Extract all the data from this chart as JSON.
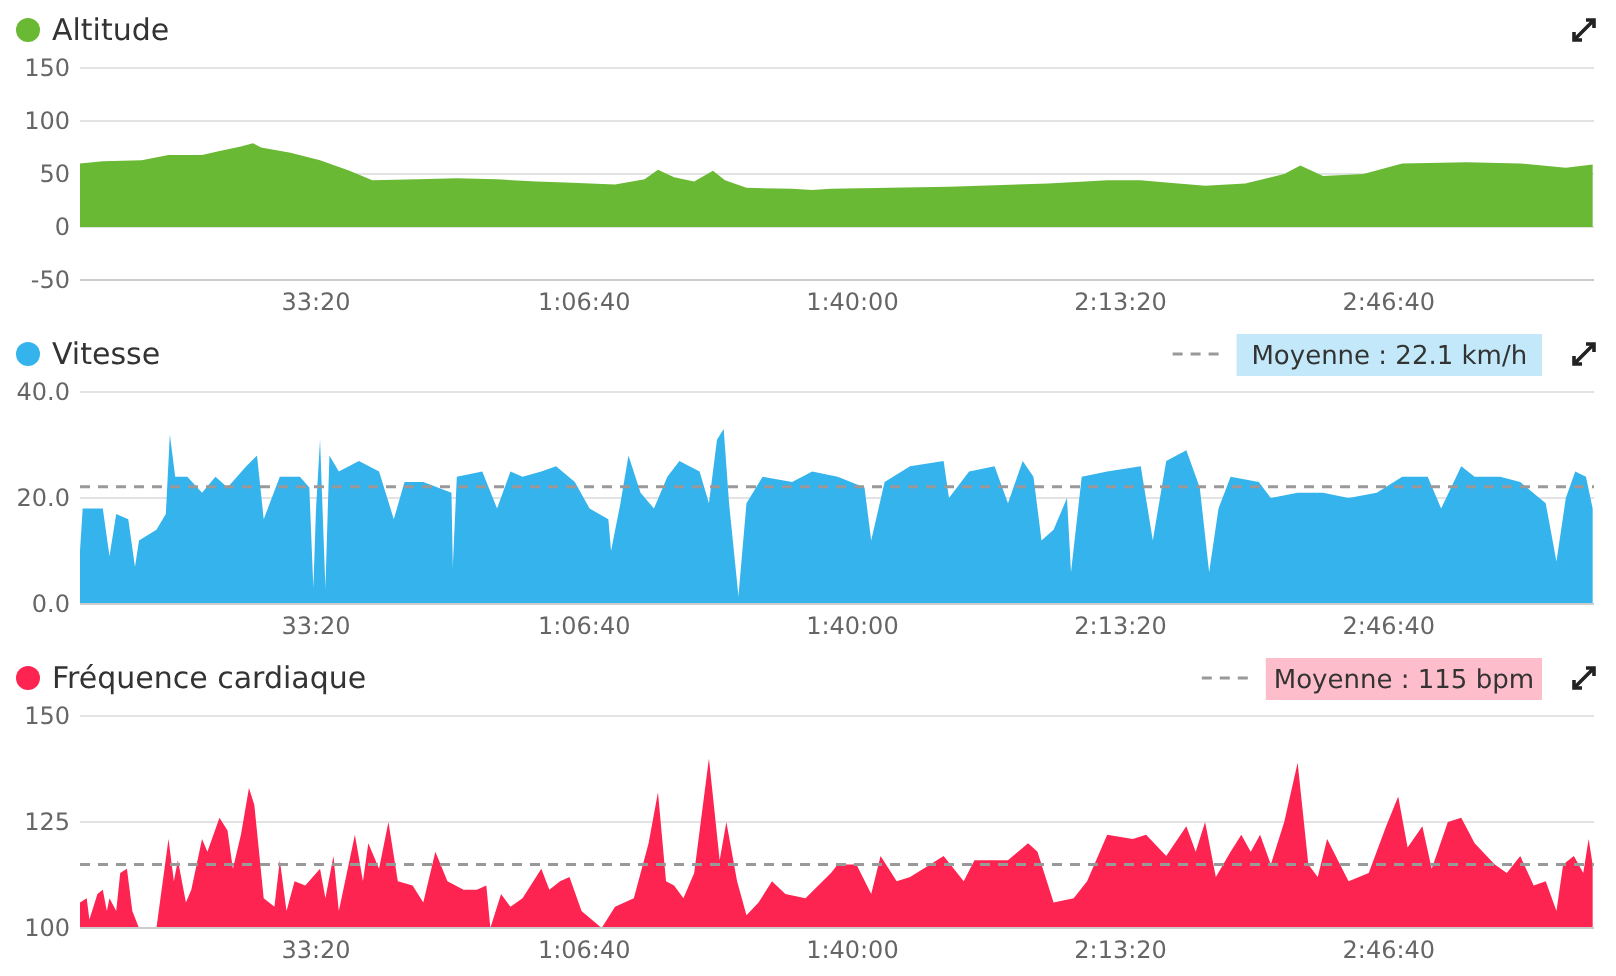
{
  "chart_data": [
    {
      "type": "area",
      "title": "Altitude",
      "xlim": [
        240,
        11530
      ],
      "xticks": [
        {
          "value": 2000,
          "label": "33:20"
        },
        {
          "value": 4000,
          "label": "1:06:40"
        },
        {
          "value": 6000,
          "label": "1:40:00"
        },
        {
          "value": 8000,
          "label": "2:13:20"
        },
        {
          "value": 10000,
          "label": "2:46:40"
        }
      ],
      "ylim": [
        -50,
        150
      ],
      "yticks": [
        -50,
        0,
        50,
        100,
        150
      ],
      "grid": "y",
      "series": [
        {
          "color": "#6ab935",
          "x": [
            240,
            410,
            700,
            900,
            1150,
            1290,
            1440,
            1530,
            1590,
            1810,
            2030,
            2250,
            2420,
            2760,
            3050,
            3350,
            3640,
            3860,
            4230,
            4450,
            4550,
            4670,
            4820,
            4960,
            5050,
            5210,
            5550,
            5700,
            5840,
            6280,
            6720,
            7460,
            7900,
            8150,
            8340,
            8630,
            8930,
            9220,
            9340,
            9510,
            9810,
            10100,
            10580,
            10980,
            11320,
            11520
          ],
          "values": [
            60,
            62,
            63,
            68,
            68,
            72,
            76,
            79,
            75,
            70,
            63,
            53,
            44,
            45,
            46,
            45,
            43,
            42,
            40,
            45,
            54,
            47,
            43,
            53,
            44,
            37,
            36,
            35,
            36,
            37,
            38,
            41,
            44,
            44,
            42,
            39,
            41,
            50,
            58,
            48,
            50,
            60,
            61,
            60,
            56,
            59
          ]
        }
      ]
    },
    {
      "type": "area",
      "title": "Vitesse",
      "xlim": [
        240,
        11530
      ],
      "xticks": [
        {
          "value": 2000,
          "label": "33:20"
        },
        {
          "value": 4000,
          "label": "1:06:40"
        },
        {
          "value": 6000,
          "label": "1:40:00"
        },
        {
          "value": 8000,
          "label": "2:13:20"
        },
        {
          "value": 10000,
          "label": "2:46:40"
        }
      ],
      "ylim": [
        0,
        40
      ],
      "yticks": [
        {
          "value": 0,
          "label": "0.0"
        },
        {
          "value": 20,
          "label": "20.0"
        },
        {
          "value": 40,
          "label": "40.0"
        }
      ],
      "grid": "y",
      "ref_lines": [
        {
          "axis": "y",
          "value": 22.1,
          "label": "Moyenne : 22.1 km/h",
          "color": "#999999",
          "line_style": "dashed"
        }
      ],
      "series": [
        {
          "color": "#35b3ec",
          "x": [
            240,
            260,
            410,
            460,
            510,
            600,
            650,
            680,
            810,
            880,
            910,
            950,
            1040,
            1150,
            1250,
            1340,
            1480,
            1560,
            1610,
            1730,
            1880,
            1950,
            1980,
            2000,
            2030,
            2070,
            2100,
            2170,
            2320,
            2470,
            2580,
            2660,
            2800,
            3010,
            3020,
            3050,
            3240,
            3350,
            3450,
            3540,
            3680,
            3790,
            3930,
            4040,
            4180,
            4200,
            4270,
            4330,
            4420,
            4520,
            4620,
            4710,
            4860,
            4930,
            4990,
            5040,
            5080,
            5150,
            5210,
            5330,
            5550,
            5700,
            5890,
            6090,
            6140,
            6240,
            6430,
            6680,
            6720,
            6870,
            7060,
            7160,
            7270,
            7350,
            7410,
            7500,
            7600,
            7630,
            7710,
            7900,
            8150,
            8240,
            8340,
            8490,
            8590,
            8660,
            8730,
            8820,
            9030,
            9120,
            9320,
            9510,
            9700,
            9910,
            10100,
            10290,
            10390,
            10540,
            10640,
            10830,
            10980,
            11170,
            11250,
            11320,
            11390,
            11470,
            11520
          ],
          "values": [
            10,
            18,
            18,
            9,
            17,
            16,
            7,
            12,
            14,
            17,
            32,
            24,
            24,
            21,
            24,
            22,
            26,
            28,
            16,
            24,
            24,
            22,
            3,
            18,
            31,
            3,
            28,
            25,
            27,
            25,
            16,
            23,
            23,
            21,
            7,
            24,
            25,
            18,
            25,
            24,
            25,
            26,
            23,
            18,
            16,
            10,
            19,
            28,
            21,
            18,
            24,
            27,
            25,
            19,
            31,
            33,
            19,
            1.5,
            19,
            24,
            23,
            25,
            24,
            22,
            12,
            23,
            26,
            27,
            20,
            25,
            26,
            19,
            27,
            24,
            12,
            14,
            20,
            6,
            24,
            25,
            26,
            12,
            27,
            29,
            22,
            6,
            18,
            24,
            23,
            20,
            21,
            21,
            20,
            21,
            24,
            24,
            18,
            26,
            24,
            24,
            23,
            19,
            8,
            20,
            25,
            24,
            18
          ]
        }
      ]
    },
    {
      "type": "area",
      "title": "Fréquence cardiaque",
      "xlim": [
        240,
        11530
      ],
      "xticks": [
        {
          "value": 2000,
          "label": "33:20"
        },
        {
          "value": 4000,
          "label": "1:06:40"
        },
        {
          "value": 6000,
          "label": "1:40:00"
        },
        {
          "value": 8000,
          "label": "2:13:20"
        },
        {
          "value": 10000,
          "label": "2:46:40"
        }
      ],
      "ylim": [
        100,
        150
      ],
      "yticks": [
        100,
        125,
        150
      ],
      "grid": "y",
      "ref_lines": [
        {
          "axis": "y",
          "value": 115,
          "label": "Moyenne : 115 bpm",
          "color": "#999999",
          "line_style": "dashed"
        }
      ],
      "series": [
        {
          "color": "#fd2451",
          "x": [
            240,
            290,
            310,
            370,
            410,
            440,
            460,
            510,
            540,
            590,
            630,
            680,
            810,
            900,
            940,
            970,
            1030,
            1070,
            1150,
            1190,
            1280,
            1340,
            1380,
            1440,
            1500,
            1540,
            1610,
            1690,
            1730,
            1780,
            1840,
            1920,
            2030,
            2070,
            2130,
            2170,
            2290,
            2350,
            2390,
            2470,
            2540,
            2610,
            2720,
            2800,
            2890,
            2980,
            3100,
            3200,
            3270,
            3300,
            3380,
            3450,
            3540,
            3680,
            3740,
            3820,
            3890,
            3980,
            4130,
            4230,
            4370,
            4480,
            4550,
            4610,
            4670,
            4740,
            4820,
            4930,
            5010,
            5060,
            5140,
            5210,
            5300,
            5400,
            5500,
            5650,
            5840,
            5890,
            6030,
            6140,
            6210,
            6330,
            6430,
            6580,
            6680,
            6830,
            6910,
            7160,
            7310,
            7380,
            7500,
            7650,
            7750,
            7900,
            8090,
            8190,
            8340,
            8490,
            8560,
            8630,
            8710,
            8820,
            8900,
            8970,
            9040,
            9120,
            9220,
            9320,
            9400,
            9470,
            9540,
            9620,
            9700,
            9850,
            9980,
            10070,
            10140,
            10250,
            10320,
            10440,
            10540,
            10640,
            10790,
            10880,
            10980,
            11080,
            11170,
            11250,
            11300,
            11380,
            11450,
            11490,
            11520
          ],
          "values": [
            106,
            107,
            102,
            108,
            109,
            104,
            107,
            104,
            113,
            114,
            104,
            100,
            100,
            121,
            111,
            116,
            106,
            109,
            121,
            118,
            126,
            123,
            114,
            122,
            133,
            129,
            107,
            105,
            116,
            104,
            111,
            110,
            114,
            107,
            117,
            104,
            122,
            111,
            120,
            114,
            125,
            111,
            110,
            106,
            118,
            111,
            109,
            109,
            110,
            100,
            108,
            105,
            107,
            114,
            109,
            111,
            112,
            104,
            100,
            105,
            107,
            120,
            132,
            111,
            110,
            107,
            113,
            140,
            116,
            125,
            111,
            103,
            106,
            111,
            108,
            107,
            113,
            115,
            115,
            108,
            117,
            111,
            112,
            115,
            117,
            111,
            116,
            116,
            120,
            118,
            106,
            107,
            111,
            122,
            121,
            122,
            117,
            124,
            118,
            125,
            112,
            118,
            122,
            118,
            122,
            115,
            125,
            139,
            115,
            112,
            121,
            116,
            111,
            113,
            124,
            131,
            119,
            124,
            114,
            125,
            126,
            120,
            115,
            113,
            117,
            110,
            111,
            104,
            115,
            117,
            113,
            121,
            115
          ]
        }
      ]
    }
  ]
}
